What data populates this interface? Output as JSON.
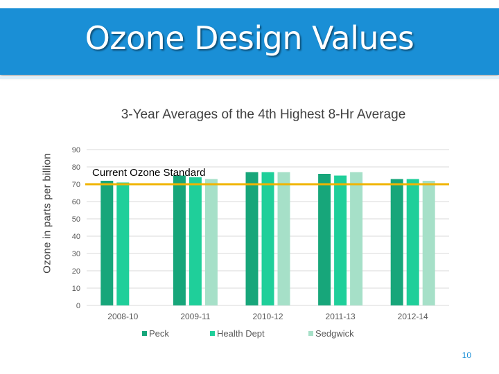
{
  "slide": {
    "title": "Ozone Design Values",
    "page_number": "10"
  },
  "chart_data": {
    "type": "bar",
    "title": "3-Year Averages of the 4th Highest 8-Hr Average",
    "ylabel": "Ozone in parts per billion",
    "xlabel": "",
    "categories": [
      "2008-10",
      "2009-11",
      "2010-12",
      "2011-13",
      "2012-14"
    ],
    "ylim": [
      0,
      90
    ],
    "yticks": [
      0,
      10,
      20,
      30,
      40,
      50,
      60,
      70,
      80,
      90
    ],
    "grid": true,
    "legend_position": "bottom",
    "series": [
      {
        "name": "Peck",
        "color": "#17a67a",
        "values": [
          72,
          75,
          77,
          76,
          73
        ]
      },
      {
        "name": "Health Dept",
        "color": "#1fcf9a",
        "values": [
          71,
          74,
          77,
          75,
          73
        ]
      },
      {
        "name": "Sedgwick",
        "color": "#a6e0c8",
        "values": [
          null,
          73,
          77,
          77,
          72
        ]
      }
    ],
    "annotations": [
      {
        "text": "Current Ozone Standard",
        "y": 70,
        "color": "#f0b400"
      }
    ]
  }
}
